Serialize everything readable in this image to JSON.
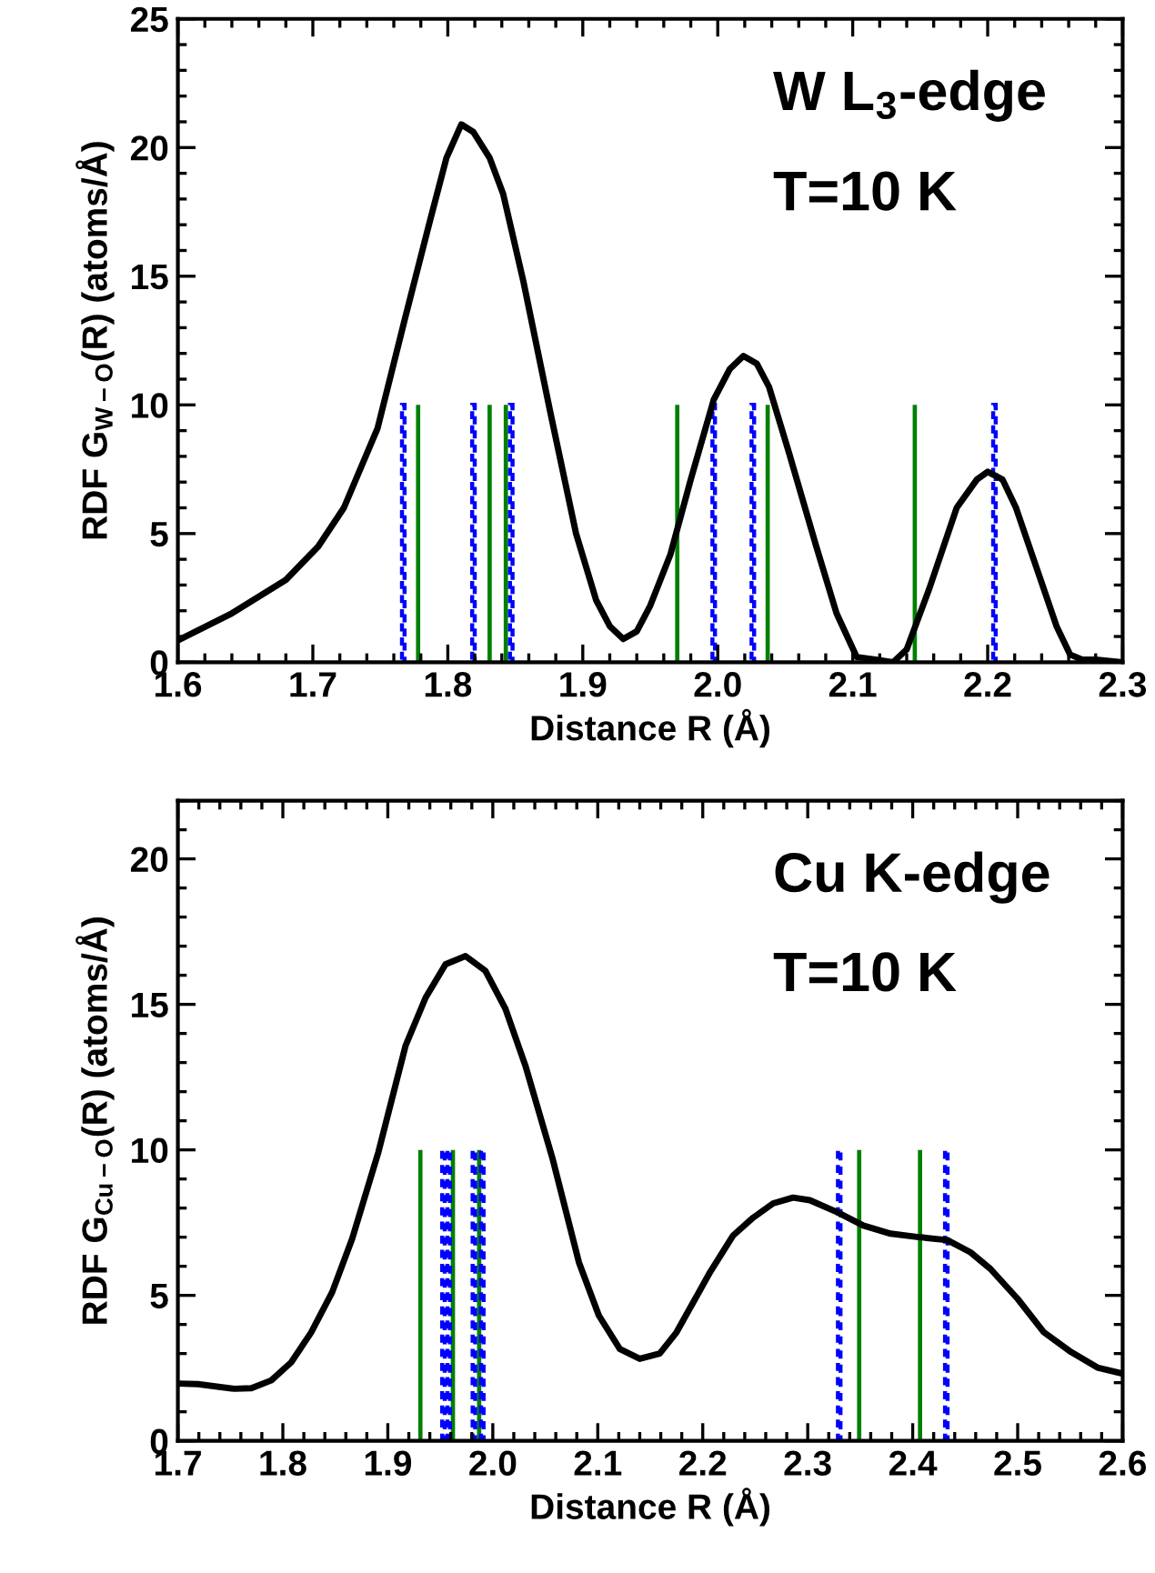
{
  "chart_data": [
    {
      "type": "line",
      "xlabel": "Distance R (Å)",
      "ylabel": "RDF G$_{W−O}$(R) (atoms/Å)",
      "annotations": [
        "W L$_{3}$-edge",
        "T=10 K"
      ],
      "xlim": [
        1.6,
        2.3
      ],
      "xticks": [
        1.6,
        1.7,
        1.8,
        1.9,
        {
          "value": 2,
          "label": "2.0"
        },
        2.1,
        2.2,
        2.3
      ],
      "ylim": [
        0,
        25
      ],
      "yticks": [
        0,
        5,
        10,
        15,
        20,
        25
      ],
      "grid": false,
      "legend": false,
      "series": [
        {
          "color": "#000000",
          "line_style": "solid",
          "x": [
            1.6,
            1.64,
            1.68,
            1.704,
            1.723,
            1.748,
            1.768,
            1.787,
            1.799,
            1.81,
            1.819,
            1.831,
            1.841,
            1.856,
            1.876,
            1.895,
            1.91,
            1.92,
            1.93,
            1.94,
            1.95,
            1.965,
            1.98,
            1.997,
            2.009,
            2.019,
            2.029,
            2.038,
            2.053,
            2.073,
            2.088,
            2.103,
            2.117,
            2.13,
            2.14,
            2.157,
            2.177,
            2.192,
            2.2,
            2.211,
            2.221,
            2.236,
            2.251,
            2.261,
            2.27,
            2.28,
            2.3
          ],
          "values": [
            0.85,
            1.9,
            3.2,
            4.5,
            6.0,
            9.1,
            13.3,
            17.2,
            19.6,
            20.9,
            20.6,
            19.6,
            18.2,
            14.8,
            9.7,
            5.0,
            2.4,
            1.4,
            0.9,
            1.2,
            2.2,
            4.2,
            7.1,
            10.2,
            11.4,
            11.9,
            11.6,
            10.7,
            8.1,
            4.5,
            1.9,
            0.2,
            0.1,
            0.0,
            0.5,
            2.9,
            6.0,
            7.1,
            7.4,
            7.1,
            6.0,
            3.7,
            1.4,
            0.3,
            0.1,
            0.1,
            0.0
          ]
        },
        {
          "type": "bar",
          "color": "#008000",
          "line_style": "solid",
          "x": [
            1.778,
            1.831,
            1.843,
            1.97,
            2.037,
            2.146
          ],
          "values": [
            10,
            10,
            10,
            10,
            10,
            10
          ]
        },
        {
          "type": "bar",
          "color": "#0000ff",
          "line_style": "dashed",
          "x": [
            1.767,
            1.819,
            1.847,
            1.997,
            2.026,
            2.205
          ],
          "values": [
            10,
            10,
            10,
            10,
            10,
            10
          ]
        }
      ]
    },
    {
      "type": "line",
      "xlabel": "Distance R (Å)",
      "ylabel": "RDF G$_{Cu−O}$(R) (atoms/Å)",
      "annotations": [
        "Cu K-edge",
        "T=10 K"
      ],
      "xlim": [
        1.7,
        2.6
      ],
      "xticks": [
        1.7,
        1.8,
        1.9,
        {
          "value": 2,
          "label": "2.0"
        },
        2.1,
        2.2,
        2.3,
        2.4,
        2.5,
        2.6
      ],
      "ylim": [
        0,
        22
      ],
      "yticks": [
        0,
        5,
        10,
        15,
        20
      ],
      "grid": false,
      "legend": false,
      "series": [
        {
          "color": "#000000",
          "line_style": "solid",
          "x": [
            1.7,
            1.719,
            1.754,
            1.77,
            1.789,
            1.808,
            1.827,
            1.847,
            1.866,
            1.891,
            1.917,
            1.936,
            1.955,
            1.974,
            1.993,
            2.012,
            2.031,
            2.057,
            2.082,
            2.101,
            2.121,
            2.14,
            2.159,
            2.175,
            2.207,
            2.229,
            2.248,
            2.267,
            2.286,
            2.302,
            2.328,
            2.353,
            2.379,
            2.404,
            2.433,
            2.455,
            2.474,
            2.5,
            2.525,
            2.551,
            2.576,
            2.6
          ],
          "values": [
            1.97,
            1.95,
            1.79,
            1.81,
            2.08,
            2.7,
            3.73,
            5.11,
            6.94,
            9.92,
            13.59,
            15.23,
            16.38,
            16.66,
            16.15,
            14.85,
            12.9,
            9.69,
            6.14,
            4.31,
            3.16,
            2.82,
            3.0,
            3.73,
            5.8,
            7.06,
            7.67,
            8.16,
            8.36,
            8.27,
            7.86,
            7.4,
            7.12,
            7.01,
            6.9,
            6.48,
            5.91,
            4.88,
            3.73,
            3.05,
            2.52,
            2.31
          ]
        },
        {
          "type": "bar",
          "color": "#008000",
          "line_style": "solid",
          "x": [
            1.931,
            1.962,
            1.987,
            2.349,
            2.407
          ],
          "values": [
            10,
            10,
            10,
            10,
            10
          ]
        },
        {
          "type": "bar",
          "color": "#0000ff",
          "line_style": "dashed",
          "x": [
            1.953,
            1.958,
            1.982,
            1.99,
            2.33,
            2.432
          ],
          "values": [
            10,
            10,
            10,
            10,
            10,
            10
          ]
        }
      ]
    }
  ]
}
